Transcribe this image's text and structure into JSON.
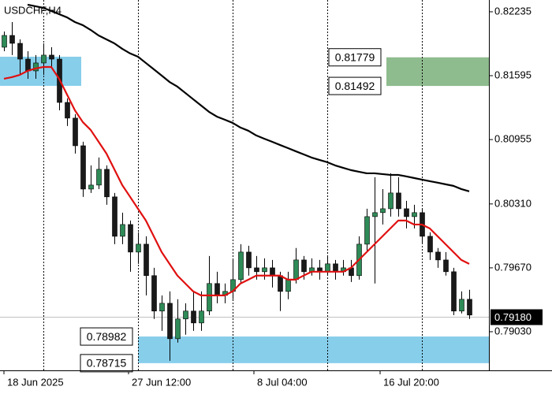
{
  "chart_data": {
    "type": "candlestick",
    "title": "USDCHF,H4",
    "x": [
      0,
      1,
      2,
      3,
      4,
      5,
      6,
      7,
      8,
      9,
      10,
      11,
      12,
      13,
      14,
      15,
      16,
      17,
      18,
      19,
      20,
      21,
      22,
      23,
      24,
      25,
      26,
      27,
      28,
      29,
      30,
      31,
      32,
      33,
      34,
      35,
      36,
      37,
      38,
      39,
      40,
      41,
      42,
      43,
      44,
      45,
      46,
      47,
      48,
      49,
      50,
      51,
      52,
      53,
      54,
      55,
      56,
      57,
      58,
      59
    ],
    "ohlc": [
      [
        0.8188,
        0.82037,
        0.8184,
        0.81998
      ],
      [
        0.81998,
        0.82132,
        0.81801,
        0.81919
      ],
      [
        0.81919,
        0.81958,
        0.81603,
        0.81761
      ],
      [
        0.81761,
        0.8184,
        0.81564,
        0.81643
      ],
      [
        0.81643,
        0.81801,
        0.81564,
        0.81722
      ],
      [
        0.81722,
        0.81919,
        0.81603,
        0.81801
      ],
      [
        0.81801,
        0.8188,
        0.81682,
        0.81761
      ],
      [
        0.81761,
        0.81801,
        0.81248,
        0.81327
      ],
      [
        0.81327,
        0.81367,
        0.81091,
        0.8117
      ],
      [
        0.8117,
        0.81209,
        0.80815,
        0.80893
      ],
      [
        0.80893,
        0.80933,
        0.80381,
        0.80459
      ],
      [
        0.80459,
        0.80696,
        0.8042,
        0.80499
      ],
      [
        0.80499,
        0.80775,
        0.80459,
        0.80657
      ],
      [
        0.80657,
        0.80696,
        0.80302,
        0.80381
      ],
      [
        0.80381,
        0.8042,
        0.79907,
        0.79986
      ],
      [
        0.79986,
        0.80223,
        0.79907,
        0.80104
      ],
      [
        0.80104,
        0.80144,
        0.79631,
        0.79828
      ],
      [
        0.79828,
        0.80026,
        0.7971,
        0.79907
      ],
      [
        0.79907,
        0.79986,
        0.79394,
        0.79592
      ],
      [
        0.79592,
        0.7967,
        0.79158,
        0.79237
      ],
      [
        0.79237,
        0.79394,
        0.79039,
        0.79315
      ],
      [
        0.79315,
        0.79434,
        0.78739,
        0.7896
      ],
      [
        0.7896,
        0.79355,
        0.78921,
        0.79158
      ],
      [
        0.79158,
        0.79315,
        0.79,
        0.79237
      ],
      [
        0.79237,
        0.79434,
        0.79039,
        0.79118
      ],
      [
        0.79118,
        0.79434,
        0.79039,
        0.79237
      ],
      [
        0.79237,
        0.79789,
        0.79197,
        0.79513
      ],
      [
        0.79513,
        0.79631,
        0.79315,
        0.79394
      ],
      [
        0.79394,
        0.79513,
        0.79315,
        0.79434
      ],
      [
        0.79434,
        0.79749,
        0.79355,
        0.79552
      ],
      [
        0.79552,
        0.79907,
        0.79513,
        0.79828
      ],
      [
        0.79828,
        0.79891,
        0.79592,
        0.7967
      ],
      [
        0.7967,
        0.79789,
        0.79552,
        0.79631
      ],
      [
        0.79631,
        0.79765,
        0.79552,
        0.7967
      ],
      [
        0.7967,
        0.79749,
        0.79473,
        0.79592
      ],
      [
        0.79592,
        0.79631,
        0.79237,
        0.79434
      ],
      [
        0.79434,
        0.79631,
        0.79355,
        0.79552
      ],
      [
        0.79552,
        0.79868,
        0.79513,
        0.79749
      ],
      [
        0.79749,
        0.79789,
        0.79552,
        0.79631
      ],
      [
        0.79631,
        0.79765,
        0.79592,
        0.7967
      ],
      [
        0.7967,
        0.79749,
        0.79552,
        0.79631
      ],
      [
        0.79631,
        0.79789,
        0.79592,
        0.7971
      ],
      [
        0.7971,
        0.79749,
        0.79552,
        0.79631
      ],
      [
        0.79631,
        0.79749,
        0.79592,
        0.7967
      ],
      [
        0.7967,
        0.79749,
        0.79528,
        0.79592
      ],
      [
        0.79592,
        0.79986,
        0.79552,
        0.79907
      ],
      [
        0.79907,
        0.80262,
        0.79828,
        0.80183
      ],
      [
        0.80183,
        0.80578,
        0.79513,
        0.80223
      ],
      [
        0.80223,
        0.80459,
        0.80104,
        0.80262
      ],
      [
        0.80262,
        0.80617,
        0.80183,
        0.8042
      ],
      [
        0.8042,
        0.80578,
        0.80183,
        0.80262
      ],
      [
        0.80262,
        0.80341,
        0.80065,
        0.80183
      ],
      [
        0.80183,
        0.80302,
        0.80065,
        0.80223
      ],
      [
        0.80223,
        0.80262,
        0.79907,
        0.79986
      ],
      [
        0.79986,
        0.80026,
        0.79749,
        0.79828
      ],
      [
        0.79828,
        0.79868,
        0.7967,
        0.79749
      ],
      [
        0.79749,
        0.79828,
        0.79592,
        0.79631
      ],
      [
        0.79631,
        0.7967,
        0.79197,
        0.79237
      ],
      [
        0.79237,
        0.79434,
        0.79213,
        0.79355
      ],
      [
        0.79355,
        0.7945,
        0.79158,
        0.79197
      ]
    ],
    "up_color": "#2e8b57",
    "down_color": "#1a1a1a",
    "lines": [
      {
        "color": "#000000",
        "values": [
          null,
          null,
          null,
          0.82306,
          0.8229,
          0.82274,
          0.82243,
          0.82211,
          0.82179,
          0.82132,
          0.82101,
          0.82053,
          0.81998,
          0.81958,
          0.81919,
          0.81864,
          0.81818,
          0.81785,
          0.81722,
          0.81659,
          0.81596,
          0.81532,
          0.81485,
          0.81422,
          0.81359,
          0.81296,
          0.81233,
          0.81185,
          0.81154,
          0.81122,
          0.81075,
          0.81043,
          0.80996,
          0.80964,
          0.80933,
          0.80901,
          0.8087,
          0.80838,
          0.80807,
          0.80775,
          0.80751,
          0.80728,
          0.80696,
          0.80672,
          0.80649,
          0.80633,
          0.80617,
          0.80617,
          0.80609,
          0.80601,
          0.80601,
          0.80586,
          0.8057,
          0.80554,
          0.80538,
          0.80523,
          0.80507,
          0.80491,
          0.80459,
          0.80436
        ]
      },
      {
        "color": "#e01010",
        "values": [
          0.81564,
          0.8158,
          0.81603,
          0.81643,
          0.81667,
          0.81682,
          0.81682,
          0.81564,
          0.81406,
          0.81248,
          0.8113,
          0.81051,
          0.80933,
          0.80815,
          0.80657,
          0.80499,
          0.80381,
          0.80262,
          0.80144,
          0.79986,
          0.79828,
          0.7971,
          0.79592,
          0.79513,
          0.79434,
          0.79394,
          0.79394,
          0.79394,
          0.79394,
          0.79434,
          0.79513,
          0.79552,
          0.79592,
          0.79592,
          0.79592,
          0.79592,
          0.79552,
          0.79552,
          0.79592,
          0.79631,
          0.79631,
          0.79631,
          0.79631,
          0.79631,
          0.7967,
          0.79749,
          0.79828,
          0.79907,
          0.79986,
          0.80065,
          0.80144,
          0.80144,
          0.80104,
          0.80104,
          0.80065,
          0.79986,
          0.79907,
          0.79828,
          0.79749,
          0.7971
        ]
      }
    ],
    "zones": [
      {
        "bounds": [
          0.81493,
          0.81785
        ],
        "xrange": [
          -0.5,
          9.8
        ],
        "color": "#87ceeb",
        "labeled": false
      },
      {
        "bounds": [
          0.81492,
          0.81779
        ],
        "xrange": [
          48.5,
          61.5
        ],
        "color": "#8fbc8f",
        "labeled": true
      },
      {
        "bounds": [
          0.78715,
          0.78982
        ],
        "xrange": [
          17,
          61.5
        ],
        "color": "#87ceeb",
        "labeled": true
      }
    ],
    "last": {
      "value": 0.7918,
      "label": "0.79180"
    },
    "separators": [
      5,
      17,
      29,
      41,
      53
    ],
    "xlim": [
      -0.5,
      61.5
    ],
    "xticks": [
      {
        "value": 0,
        "label": "18 Jun 2025"
      },
      {
        "value": 15.8,
        "label": "27 Jun 12:00"
      },
      {
        "value": 31.7,
        "label": "8 Jul 04:00"
      },
      {
        "value": 47.7,
        "label": "16 Jul 20:00"
      }
    ],
    "ylim": [
      0.78643,
      0.82353
    ],
    "yticks": [
      0.82235,
      0.81595,
      0.80955,
      {
        "value": 0.8031,
        "label": "0.80310"
      },
      {
        "value": 0.7967,
        "label": "0.79670"
      },
      {
        "value": 0.7903,
        "label": "0.79030"
      }
    ]
  }
}
